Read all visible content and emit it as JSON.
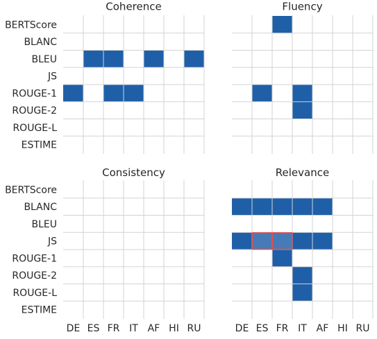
{
  "chart_data": {
    "type": "heatmap",
    "rows": [
      "BERTScore",
      "BLANC",
      "BLEU",
      "JS",
      "ROUGE-1",
      "ROUGE-2",
      "ROUGE-L",
      "ESTIME"
    ],
    "columns": [
      "DE",
      "ES",
      "FR",
      "IT",
      "AF",
      "HI",
      "RU"
    ],
    "fill_color": "#1f5fa8",
    "highlight_color": "#e05050",
    "grid": true,
    "panels": [
      {
        "title": "Coherence",
        "cells": [
          [
            0,
            0,
            0,
            0,
            0,
            0,
            0
          ],
          [
            0,
            0,
            0,
            0,
            0,
            0,
            0
          ],
          [
            0,
            1,
            1,
            0,
            1,
            0,
            1
          ],
          [
            0,
            0,
            0,
            0,
            0,
            0,
            0
          ],
          [
            1,
            0,
            1,
            1,
            0,
            0,
            0
          ],
          [
            0,
            0,
            0,
            0,
            0,
            0,
            0
          ],
          [
            0,
            0,
            0,
            0,
            0,
            0,
            0
          ],
          [
            0,
            0,
            0,
            0,
            0,
            0,
            0
          ]
        ],
        "highlighted": []
      },
      {
        "title": "Fluency",
        "cells": [
          [
            0,
            0,
            1,
            0,
            0,
            0,
            0
          ],
          [
            0,
            0,
            0,
            0,
            0,
            0,
            0
          ],
          [
            0,
            0,
            0,
            0,
            0,
            0,
            0
          ],
          [
            0,
            0,
            0,
            0,
            0,
            0,
            0
          ],
          [
            0,
            1,
            0,
            1,
            0,
            0,
            0
          ],
          [
            0,
            0,
            0,
            1,
            0,
            0,
            0
          ],
          [
            0,
            0,
            0,
            0,
            0,
            0,
            0
          ],
          [
            0,
            0,
            0,
            0,
            0,
            0,
            0
          ]
        ],
        "highlighted": []
      },
      {
        "title": "Consistency",
        "cells": [
          [
            0,
            0,
            0,
            0,
            0,
            0,
            0
          ],
          [
            0,
            0,
            0,
            0,
            0,
            0,
            0
          ],
          [
            0,
            0,
            0,
            0,
            0,
            0,
            0
          ],
          [
            0,
            0,
            0,
            0,
            0,
            0,
            0
          ],
          [
            0,
            0,
            0,
            0,
            0,
            0,
            0
          ],
          [
            0,
            0,
            0,
            0,
            0,
            0,
            0
          ],
          [
            0,
            0,
            0,
            0,
            0,
            0,
            0
          ],
          [
            0,
            0,
            0,
            0,
            0,
            0,
            0
          ]
        ],
        "highlighted": []
      },
      {
        "title": "Relevance",
        "cells": [
          [
            0,
            0,
            0,
            0,
            0,
            0,
            0
          ],
          [
            1,
            1,
            1,
            1,
            1,
            0,
            0
          ],
          [
            0,
            0,
            0,
            0,
            0,
            0,
            0
          ],
          [
            1,
            1,
            1,
            1,
            1,
            0,
            0
          ],
          [
            0,
            0,
            1,
            0,
            0,
            0,
            0
          ],
          [
            0,
            0,
            0,
            1,
            0,
            0,
            0
          ],
          [
            0,
            0,
            0,
            1,
            0,
            0,
            0
          ],
          [
            0,
            0,
            0,
            0,
            0,
            0,
            0
          ]
        ],
        "highlighted": [
          [
            3,
            1
          ],
          [
            3,
            2
          ]
        ]
      }
    ]
  }
}
